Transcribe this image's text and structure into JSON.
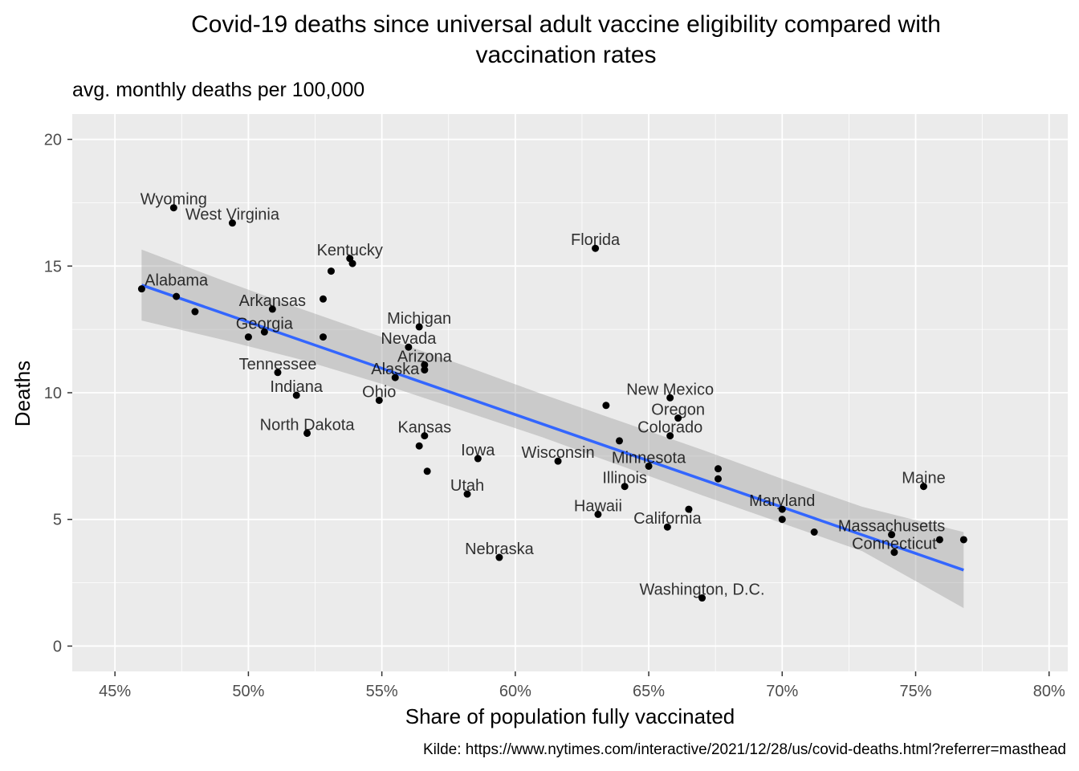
{
  "chart_data": {
    "type": "scatter",
    "title": "Covid-19 deaths since universal adult vaccine eligibility compared with\nvaccination rates",
    "subtitle": "avg. monthly deaths per 100,000",
    "xlabel": "Share of population fully vaccinated",
    "ylabel": "Deaths",
    "caption": "Kilde: https://www.nytimes.com/interactive/2021/12/28/us/covid-deaths.html?referrer=masthead",
    "xlim": [
      0.434,
      0.807
    ],
    "ylim": [
      -1.0,
      21.0
    ],
    "x_ticks": [
      {
        "value": 0.45,
        "label": "45%"
      },
      {
        "value": 0.5,
        "label": "50%"
      },
      {
        "value": 0.55,
        "label": "55%"
      },
      {
        "value": 0.6,
        "label": "60%"
      },
      {
        "value": 0.65,
        "label": "65%"
      },
      {
        "value": 0.7,
        "label": "70%"
      },
      {
        "value": 0.75,
        "label": "75%"
      },
      {
        "value": 0.8,
        "label": "80%"
      }
    ],
    "y_ticks": [
      {
        "value": 0,
        "label": "0"
      },
      {
        "value": 5,
        "label": "5"
      },
      {
        "value": 10,
        "label": "10"
      },
      {
        "value": 15,
        "label": "15"
      },
      {
        "value": 20,
        "label": "20"
      }
    ],
    "grid": true,
    "points": [
      {
        "x": 0.472,
        "y": 17.3
      },
      {
        "x": 0.494,
        "y": 16.7
      },
      {
        "x": 0.46,
        "y": 14.1
      },
      {
        "x": 0.473,
        "y": 13.8
      },
      {
        "x": 0.48,
        "y": 13.2
      },
      {
        "x": 0.509,
        "y": 13.3
      },
      {
        "x": 0.5,
        "y": 12.2
      },
      {
        "x": 0.506,
        "y": 12.4
      },
      {
        "x": 0.511,
        "y": 10.8
      },
      {
        "x": 0.518,
        "y": 9.9
      },
      {
        "x": 0.522,
        "y": 8.4
      },
      {
        "x": 0.528,
        "y": 13.7
      },
      {
        "x": 0.528,
        "y": 12.2
      },
      {
        "x": 0.531,
        "y": 14.8
      },
      {
        "x": 0.538,
        "y": 15.3
      },
      {
        "x": 0.539,
        "y": 15.1
      },
      {
        "x": 0.549,
        "y": 9.7
      },
      {
        "x": 0.555,
        "y": 10.6
      },
      {
        "x": 0.56,
        "y": 11.8
      },
      {
        "x": 0.564,
        "y": 12.6
      },
      {
        "x": 0.566,
        "y": 11.1
      },
      {
        "x": 0.566,
        "y": 10.9
      },
      {
        "x": 0.564,
        "y": 7.9
      },
      {
        "x": 0.566,
        "y": 8.3
      },
      {
        "x": 0.567,
        "y": 6.9
      },
      {
        "x": 0.582,
        "y": 6.0
      },
      {
        "x": 0.586,
        "y": 7.4
      },
      {
        "x": 0.594,
        "y": 3.5
      },
      {
        "x": 0.616,
        "y": 7.3
      },
      {
        "x": 0.63,
        "y": 15.7
      },
      {
        "x": 0.631,
        "y": 5.2
      },
      {
        "x": 0.634,
        "y": 9.5
      },
      {
        "x": 0.639,
        "y": 8.1
      },
      {
        "x": 0.641,
        "y": 6.3
      },
      {
        "x": 0.65,
        "y": 7.1
      },
      {
        "x": 0.657,
        "y": 4.7
      },
      {
        "x": 0.658,
        "y": 8.3
      },
      {
        "x": 0.658,
        "y": 9.8
      },
      {
        "x": 0.661,
        "y": 9.0
      },
      {
        "x": 0.665,
        "y": 5.4
      },
      {
        "x": 0.67,
        "y": 1.9
      },
      {
        "x": 0.676,
        "y": 7.0
      },
      {
        "x": 0.676,
        "y": 6.6
      },
      {
        "x": 0.7,
        "y": 5.4
      },
      {
        "x": 0.7,
        "y": 5.0
      },
      {
        "x": 0.712,
        "y": 4.5
      },
      {
        "x": 0.741,
        "y": 4.4
      },
      {
        "x": 0.742,
        "y": 3.7
      },
      {
        "x": 0.753,
        "y": 6.3
      },
      {
        "x": 0.759,
        "y": 4.2
      },
      {
        "x": 0.768,
        "y": 4.2
      }
    ],
    "labels": [
      {
        "text": "Wyoming",
        "x": 0.472,
        "y": 17.3
      },
      {
        "text": "West Virginia",
        "x": 0.494,
        "y": 16.7
      },
      {
        "text": "Kentucky",
        "x": 0.538,
        "y": 15.3
      },
      {
        "text": "Florida",
        "x": 0.63,
        "y": 15.7
      },
      {
        "text": "Alabama",
        "x": 0.473,
        "y": 14.1
      },
      {
        "text": "Arkansas",
        "x": 0.509,
        "y": 13.3
      },
      {
        "text": "Georgia",
        "x": 0.506,
        "y": 12.4
      },
      {
        "text": "Michigan",
        "x": 0.564,
        "y": 12.6
      },
      {
        "text": "Nevada",
        "x": 0.56,
        "y": 11.8
      },
      {
        "text": "Arizona",
        "x": 0.566,
        "y": 11.1
      },
      {
        "text": "Alaska",
        "x": 0.555,
        "y": 10.6
      },
      {
        "text": "Tennessee",
        "x": 0.511,
        "y": 10.8
      },
      {
        "text": "Indiana",
        "x": 0.518,
        "y": 9.9
      },
      {
        "text": "Ohio",
        "x": 0.549,
        "y": 9.7
      },
      {
        "text": "New Mexico",
        "x": 0.658,
        "y": 9.8
      },
      {
        "text": "Oregon",
        "x": 0.661,
        "y": 9.0
      },
      {
        "text": "North Dakota",
        "x": 0.522,
        "y": 8.4
      },
      {
        "text": "Kansas",
        "x": 0.566,
        "y": 8.3
      },
      {
        "text": "Colorado",
        "x": 0.658,
        "y": 8.3
      },
      {
        "text": "Iowa",
        "x": 0.586,
        "y": 7.4
      },
      {
        "text": "Wisconsin",
        "x": 0.616,
        "y": 7.3
      },
      {
        "text": "Minnesota",
        "x": 0.65,
        "y": 7.1
      },
      {
        "text": "Illinois",
        "x": 0.641,
        "y": 6.3
      },
      {
        "text": "Utah",
        "x": 0.582,
        "y": 6.0
      },
      {
        "text": "Maine",
        "x": 0.753,
        "y": 6.3
      },
      {
        "text": "Maryland",
        "x": 0.7,
        "y": 5.4
      },
      {
        "text": "Hawaii",
        "x": 0.631,
        "y": 5.2
      },
      {
        "text": "California",
        "x": 0.657,
        "y": 4.7
      },
      {
        "text": "Massachusetts",
        "x": 0.741,
        "y": 4.4
      },
      {
        "text": "Connecticut",
        "x": 0.742,
        "y": 3.7
      },
      {
        "text": "Nebraska",
        "x": 0.594,
        "y": 3.5
      },
      {
        "text": "Washington, D.C.",
        "x": 0.67,
        "y": 1.9
      }
    ],
    "trend": {
      "method": "lm",
      "x": [
        0.46,
        0.768
      ],
      "y": [
        14.25,
        3.0
      ]
    },
    "confidence_band": {
      "x": [
        0.46,
        0.49,
        0.52,
        0.55,
        0.58,
        0.61,
        0.64,
        0.67,
        0.7,
        0.73,
        0.768
      ],
      "lower": [
        12.85,
        12.1,
        11.3,
        10.35,
        9.3,
        8.25,
        7.1,
        5.95,
        4.85,
        3.75,
        1.5
      ],
      "upper": [
        15.65,
        14.45,
        13.3,
        12.2,
        11.1,
        9.95,
        8.85,
        7.75,
        6.6,
        5.5,
        4.5
      ]
    },
    "colors": {
      "panel": "#ebebeb",
      "grid_major": "#ffffff",
      "points": "#000000",
      "trend": "#3366ff",
      "band": "#999999"
    }
  }
}
